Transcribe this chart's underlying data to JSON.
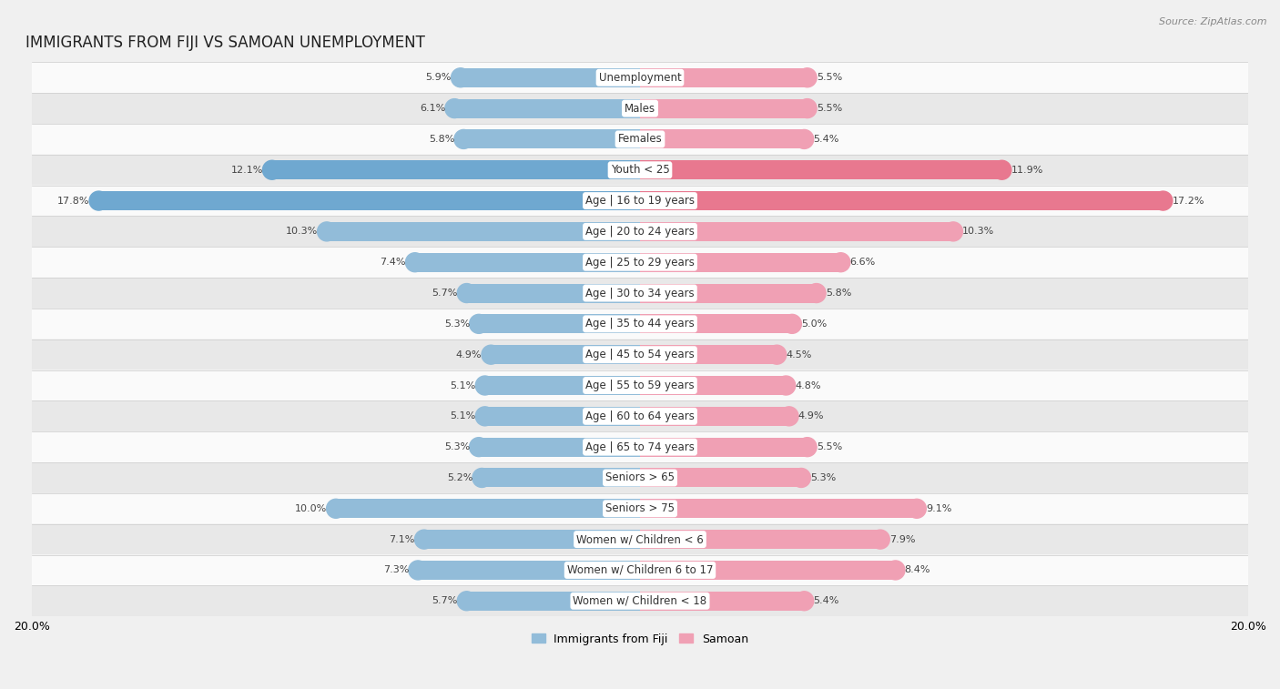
{
  "title": "IMMIGRANTS FROM FIJI VS SAMOAN UNEMPLOYMENT",
  "source": "Source: ZipAtlas.com",
  "categories": [
    "Unemployment",
    "Males",
    "Females",
    "Youth < 25",
    "Age | 16 to 19 years",
    "Age | 20 to 24 years",
    "Age | 25 to 29 years",
    "Age | 30 to 34 years",
    "Age | 35 to 44 years",
    "Age | 45 to 54 years",
    "Age | 55 to 59 years",
    "Age | 60 to 64 years",
    "Age | 65 to 74 years",
    "Seniors > 65",
    "Seniors > 75",
    "Women w/ Children < 6",
    "Women w/ Children 6 to 17",
    "Women w/ Children < 18"
  ],
  "fiji_values": [
    5.9,
    6.1,
    5.8,
    12.1,
    17.8,
    10.3,
    7.4,
    5.7,
    5.3,
    4.9,
    5.1,
    5.1,
    5.3,
    5.2,
    10.0,
    7.1,
    7.3,
    5.7
  ],
  "samoan_values": [
    5.5,
    5.5,
    5.4,
    11.9,
    17.2,
    10.3,
    6.6,
    5.8,
    5.0,
    4.5,
    4.8,
    4.9,
    5.5,
    5.3,
    9.1,
    7.9,
    8.4,
    5.4
  ],
  "fiji_color": "#92bcd9",
  "samoan_color": "#f0a0b4",
  "fiji_highlight_color": "#6fa8d0",
  "samoan_highlight_color": "#e8788f",
  "highlight_rows": [
    3,
    4
  ],
  "xlim": 20.0,
  "bar_height": 0.62,
  "background_color": "#f0f0f0",
  "row_bg_light": "#fafafa",
  "row_bg_dark": "#e8e8e8",
  "legend_fiji": "Immigrants from Fiji",
  "legend_samoan": "Samoan",
  "title_fontsize": 12,
  "label_fontsize": 8.5,
  "value_fontsize": 8.0
}
